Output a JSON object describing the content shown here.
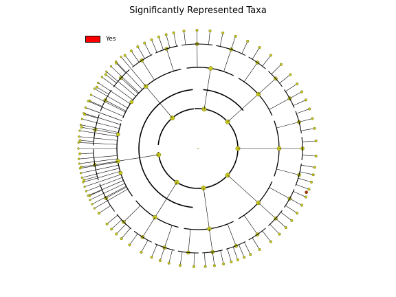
{
  "title": "Significantly Represented Taxa",
  "legend": [
    {
      "label": "Yes",
      "color": "#ff0000"
    }
  ],
  "colors": {
    "node_fill": "#c8c81e",
    "node_stroke": "#6b6b10",
    "branch": "#000000",
    "highlight": "#b03010"
  },
  "cladogram": {
    "type": "circular-cladogram",
    "levels": 5,
    "clades": [
      {
        "angle_range_deg": [
          -100,
          -62
        ],
        "children": 7
      },
      {
        "angle_range_deg": [
          -62,
          -22
        ],
        "children": 8
      },
      {
        "angle_range_deg": [
          -22,
          22
        ],
        "children": 10
      },
      {
        "angle_range_deg": [
          22,
          62
        ],
        "children": 9
      },
      {
        "angle_range_deg": [
          62,
          102
        ],
        "children": 9
      },
      {
        "angle_range_deg": [
          102,
          142
        ],
        "children": 8
      },
      {
        "angle_range_deg": [
          142,
          200
        ],
        "children": 10
      },
      {
        "angle_range_deg": [
          200,
          260
        ],
        "children": 11
      }
    ],
    "significant_highlight": true
  }
}
